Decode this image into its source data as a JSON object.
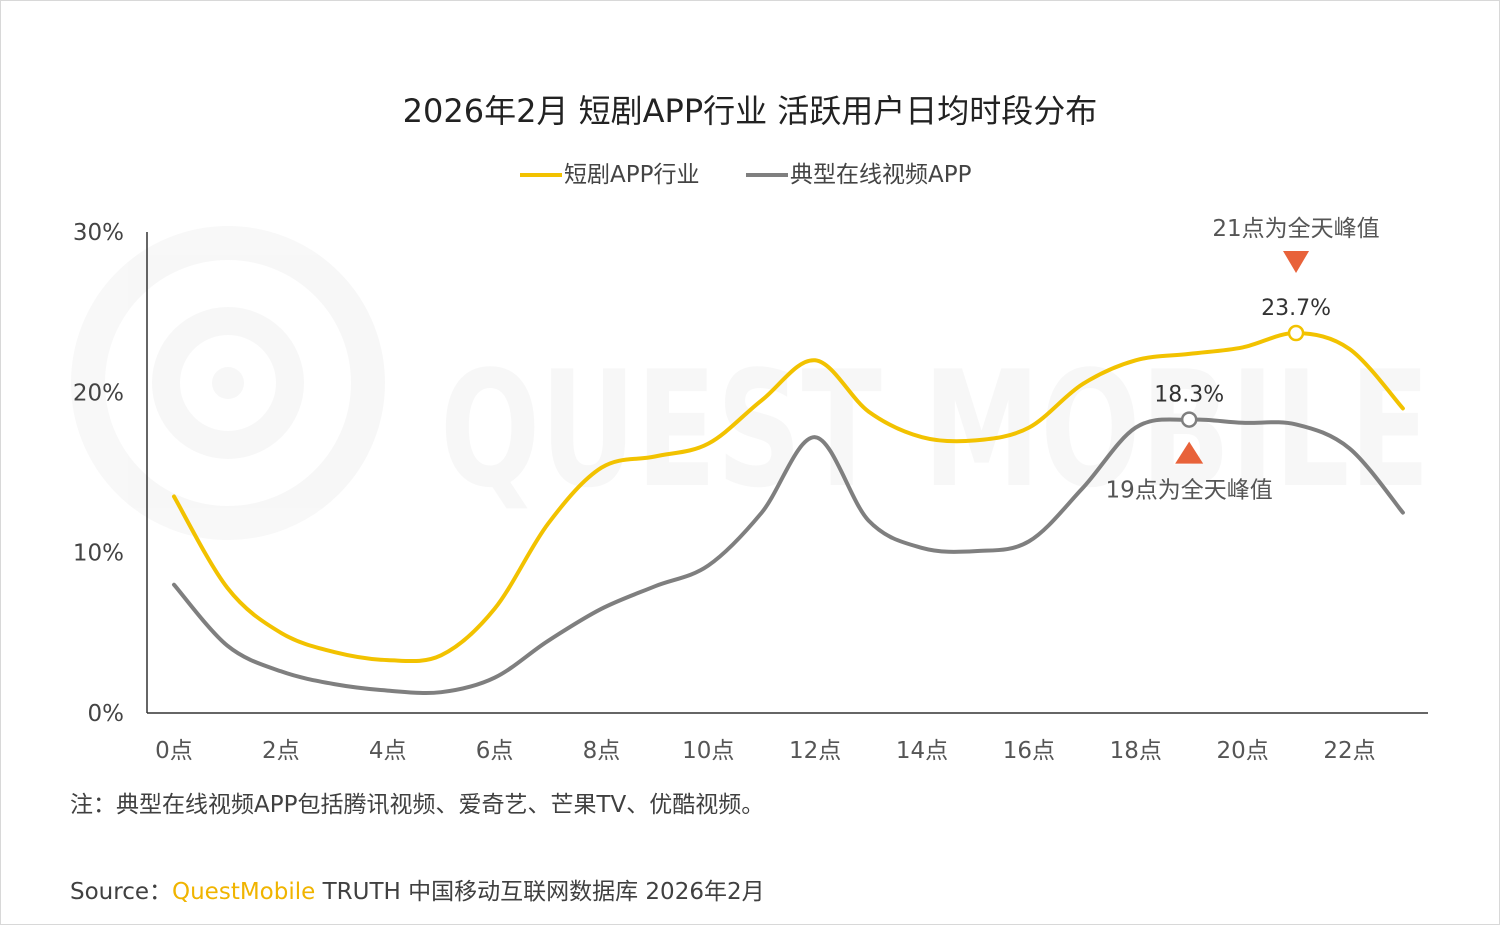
{
  "chart_data": {
    "type": "line",
    "title": "2026年2月 短剧APP行业 活跃用户日均时段分布",
    "x": [
      "0点",
      "1点",
      "2点",
      "3点",
      "4点",
      "5点",
      "6点",
      "7点",
      "8点",
      "9点",
      "10点",
      "11点",
      "12点",
      "13点",
      "14点",
      "15点",
      "16点",
      "17点",
      "18点",
      "19点",
      "20点",
      "21点",
      "22点",
      "23点"
    ],
    "x_tick_labels": [
      "0点",
      "2点",
      "4点",
      "6点",
      "8点",
      "10点",
      "12点",
      "14点",
      "16点",
      "18点",
      "20点",
      "22点"
    ],
    "y_tick_labels": [
      "0%",
      "10%",
      "20%",
      "30%"
    ],
    "ylim": [
      0,
      30
    ],
    "y_unit": "%",
    "legend_position": "top-center",
    "series": [
      {
        "name": "短剧APP行业",
        "color": "#f2c200",
        "values": [
          13.5,
          7.8,
          5.0,
          3.8,
          3.3,
          3.6,
          6.5,
          11.8,
          15.3,
          16.0,
          16.8,
          19.5,
          22.0,
          18.8,
          17.2,
          17.0,
          17.8,
          20.5,
          22.0,
          22.4,
          22.8,
          23.7,
          22.7,
          19.0
        ]
      },
      {
        "name": "典型在线视频APP",
        "color": "#7f7f7f",
        "values": [
          8.0,
          4.2,
          2.6,
          1.8,
          1.4,
          1.3,
          2.2,
          4.5,
          6.5,
          7.9,
          9.2,
          12.5,
          17.2,
          12.0,
          10.3,
          10.1,
          10.7,
          14.0,
          17.8,
          18.3,
          18.1,
          18.0,
          16.5,
          12.5
        ]
      }
    ],
    "annotations": [
      {
        "series_index": 0,
        "x_index": 21,
        "value_label": "23.7%",
        "callout": "21点为全天峰值",
        "callout_position": "above",
        "marker_color": "#e8623a"
      },
      {
        "series_index": 1,
        "x_index": 19,
        "value_label": "18.3%",
        "callout": "19点为全天峰值",
        "callout_position": "below",
        "marker_color": "#e8623a"
      }
    ],
    "watermark": "QUEST MOBILE"
  },
  "footer": {
    "note": "注：典型在线视频APP包括腾讯视频、爱奇艺、芒果TV、优酷视频。",
    "source_prefix": "Source：",
    "source_brand": "QuestMobile",
    "source_rest": " TRUTH 中国移动互联网数据库 2026年2月"
  }
}
